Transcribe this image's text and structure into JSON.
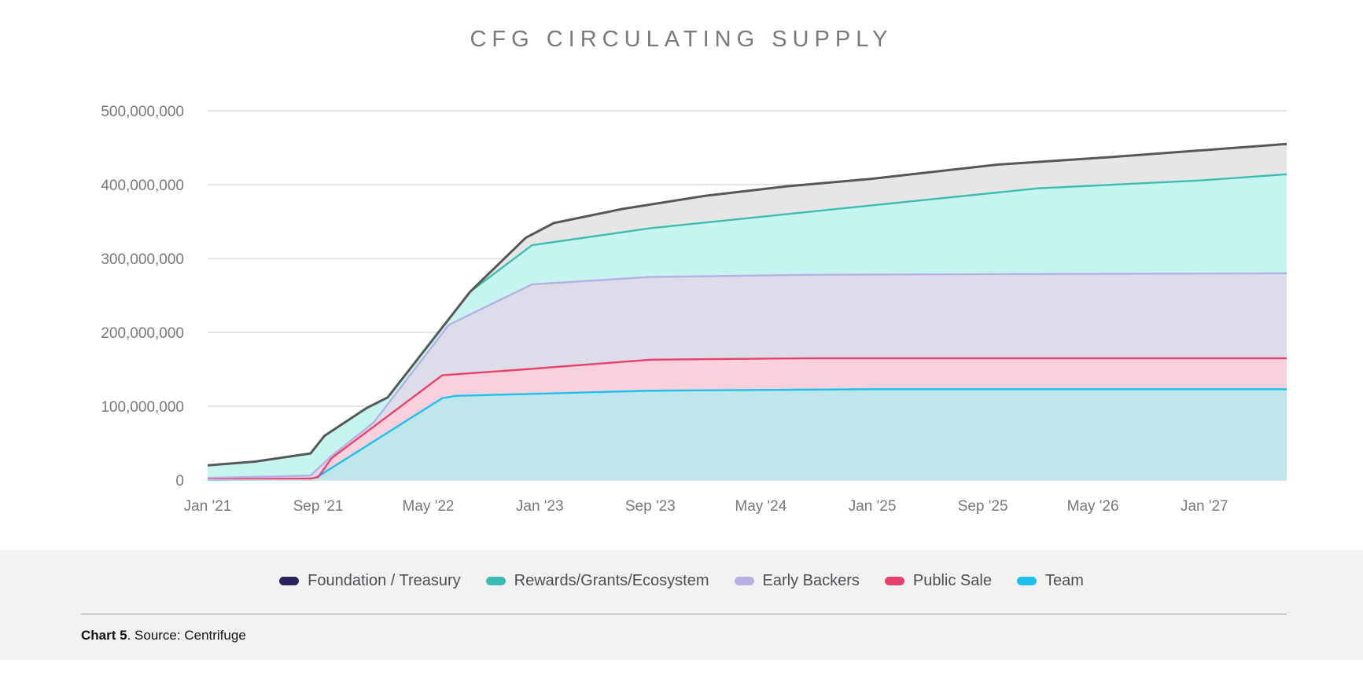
{
  "chart_data": {
    "type": "area",
    "title": "CFG CIRCULATING SUPPLY",
    "ylim": [
      0,
      500000000
    ],
    "y_ticks": [
      0,
      100000000,
      200000000,
      300000000,
      400000000,
      500000000
    ],
    "y_tick_labels": [
      "0",
      "100,000,000",
      "200,000,000",
      "300,000,000",
      "400,000,000",
      "500,000,000"
    ],
    "xlim": [
      "2021-01-01",
      "2027-07-01"
    ],
    "x_ticks": [
      "2021-01-01",
      "2021-09-01",
      "2022-05-01",
      "2023-01-01",
      "2023-09-01",
      "2024-05-01",
      "2025-01-01",
      "2025-09-01",
      "2026-05-01",
      "2027-01-01"
    ],
    "x_tick_labels": [
      "Jan '21",
      "Sep '21",
      "May '22",
      "Jan '23",
      "Sep '23",
      "May '24",
      "Jan '25",
      "Sep '25",
      "May '26",
      "Jan '27"
    ],
    "stacked_cumulative": true,
    "grid": true,
    "legend_position": "bottom",
    "series": [
      {
        "name": "Team",
        "color": "#1ec0ee",
        "fill": "#bfe6ea",
        "points": [
          [
            "2021-01-01",
            0
          ],
          [
            "2021-08-15",
            1000000
          ],
          [
            "2021-09-01",
            5000000
          ],
          [
            "2022-06-01",
            111000000
          ],
          [
            "2022-07-01",
            114000000
          ],
          [
            "2023-01-01",
            117000000
          ],
          [
            "2023-09-01",
            121000000
          ],
          [
            "2024-05-01",
            122000000
          ],
          [
            "2025-01-01",
            123000000
          ],
          [
            "2027-07-01",
            123000000
          ]
        ]
      },
      {
        "name": "Public Sale",
        "color": "#e8416d",
        "fill": "#f8d1dc",
        "points": [
          [
            "2021-01-01",
            1000000
          ],
          [
            "2021-08-15",
            2000000
          ],
          [
            "2021-09-01",
            4000000
          ],
          [
            "2021-10-01",
            30000000
          ],
          [
            "2022-06-01",
            142000000
          ],
          [
            "2022-12-01",
            150000000
          ],
          [
            "2023-09-01",
            163000000
          ],
          [
            "2024-09-01",
            165000000
          ],
          [
            "2027-07-01",
            165000000
          ]
        ]
      },
      {
        "name": "Early Backers",
        "color": "#b7b0e2",
        "fill": "#dddde9",
        "points": [
          [
            "2021-01-01",
            3000000
          ],
          [
            "2021-08-15",
            6000000
          ],
          [
            "2021-10-01",
            33000000
          ],
          [
            "2022-01-01",
            78000000
          ],
          [
            "2022-06-15",
            210000000
          ],
          [
            "2022-12-15",
            265000000
          ],
          [
            "2023-09-01",
            275000000
          ],
          [
            "2024-09-01",
            278000000
          ],
          [
            "2027-07-01",
            280000000
          ]
        ]
      },
      {
        "name": "Rewards/Grants/Ecosystem",
        "color": "#3dbdb1",
        "fill": "#c6f5ef",
        "points": [
          [
            "2021-01-01",
            20000000
          ],
          [
            "2021-04-15",
            25000000
          ],
          [
            "2021-08-15",
            36000000
          ],
          [
            "2021-09-15",
            60000000
          ],
          [
            "2021-12-15",
            97000000
          ],
          [
            "2022-02-01",
            112000000
          ],
          [
            "2022-08-01",
            255000000
          ],
          [
            "2022-12-15",
            318000000
          ],
          [
            "2023-09-01",
            341000000
          ],
          [
            "2025-01-01",
            372000000
          ],
          [
            "2026-01-01",
            395000000
          ],
          [
            "2027-01-01",
            406000000
          ],
          [
            "2027-07-01",
            414000000
          ]
        ]
      },
      {
        "name": "Foundation / Treasury",
        "color": "#29235c",
        "fill": "#e6e6e6",
        "points": [
          [
            "2021-01-01",
            20000000
          ],
          [
            "2021-04-15",
            25000000
          ],
          [
            "2021-08-15",
            36000000
          ],
          [
            "2021-09-15",
            60000000
          ],
          [
            "2021-12-15",
            97000000
          ],
          [
            "2022-02-01",
            112000000
          ],
          [
            "2022-08-01",
            255000000
          ],
          [
            "2022-12-01",
            328000000
          ],
          [
            "2023-02-01",
            348000000
          ],
          [
            "2023-07-01",
            367000000
          ],
          [
            "2024-01-01",
            385000000
          ],
          [
            "2024-07-01",
            398000000
          ],
          [
            "2025-01-01",
            408000000
          ],
          [
            "2025-10-01",
            427000000
          ],
          [
            "2026-06-01",
            437000000
          ],
          [
            "2027-07-01",
            455000000
          ]
        ]
      }
    ]
  },
  "legend": [
    {
      "label": "Foundation / Treasury",
      "color": "#29235c"
    },
    {
      "label": "Rewards/Grants/Ecosystem",
      "color": "#3dbdb1"
    },
    {
      "label": "Early Backers",
      "color": "#b7b0e2"
    },
    {
      "label": "Public Sale",
      "color": "#e8416d"
    },
    {
      "label": "Team",
      "color": "#1ec0ee"
    }
  ],
  "caption": {
    "bold": "Chart 5",
    "rest": ". Source: Centrifuge"
  }
}
